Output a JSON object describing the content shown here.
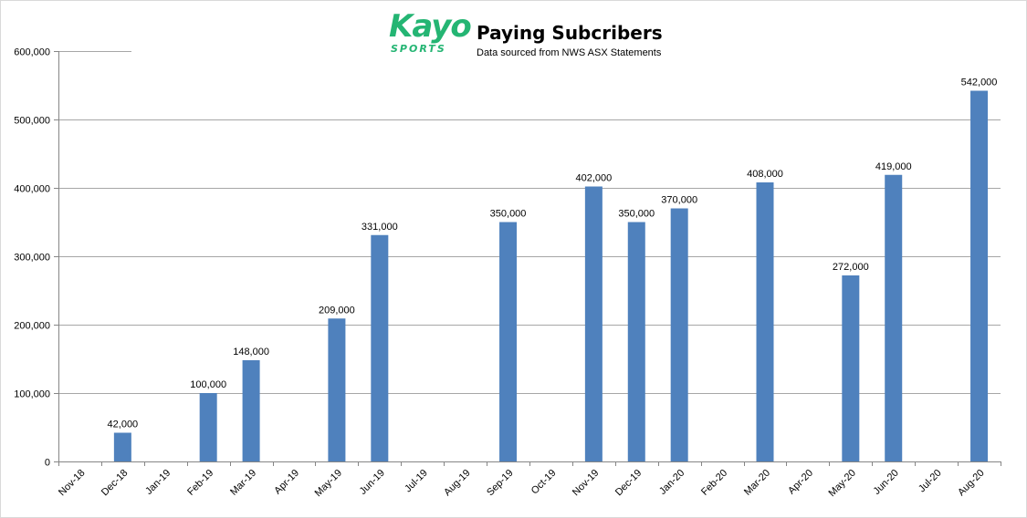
{
  "header": {
    "logo_word": "Kayo",
    "logo_sub": "SPORTS",
    "title": "Paying Subcribers",
    "subtitle": "Data sourced from NWS ASX Statements"
  },
  "colors": {
    "bar": "#4f81bd",
    "grid": "#a6a6a6",
    "axis": "#868686",
    "logo": "#24b573"
  },
  "chart_data": {
    "type": "bar",
    "title": "Paying Subcribers",
    "subtitle": "Data sourced from NWS ASX Statements",
    "xlabel": "",
    "ylabel": "",
    "ylim": [
      0,
      600000
    ],
    "yticks": [
      0,
      100000,
      200000,
      300000,
      400000,
      500000,
      600000
    ],
    "ytick_labels": [
      "0",
      "100,000",
      "200,000",
      "300,000",
      "400,000",
      "500,000",
      "600,000"
    ],
    "grid": true,
    "legend": "none",
    "categories": [
      "Nov-18",
      "Dec-18",
      "Jan-19",
      "Feb-19",
      "Mar-19",
      "Apr-19",
      "May-19",
      "Jun-19",
      "Jul-19",
      "Aug-19",
      "Sep-19",
      "Oct-19",
      "Nov-19",
      "Dec-19",
      "Jan-20",
      "Feb-20",
      "Mar-20",
      "Apr-20",
      "May-20",
      "Jun-20",
      "Jul-20",
      "Aug-20"
    ],
    "values": [
      null,
      42000,
      null,
      100000,
      148000,
      null,
      209000,
      331000,
      null,
      null,
      350000,
      null,
      402000,
      350000,
      370000,
      null,
      408000,
      null,
      272000,
      419000,
      null,
      542000
    ],
    "value_labels": [
      null,
      "42,000",
      null,
      "100,000",
      "148,000",
      null,
      "209,000",
      "331,000",
      null,
      null,
      "350,000",
      null,
      "402,000",
      "350,000",
      "370,000",
      null,
      "408,000",
      null,
      "272,000",
      "419,000",
      null,
      "542,000"
    ]
  }
}
